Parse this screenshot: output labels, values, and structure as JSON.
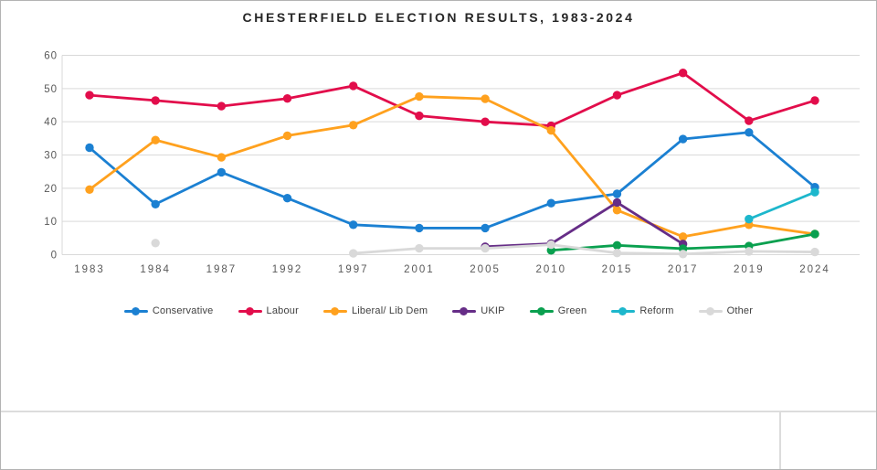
{
  "header": {
    "title": "CHESTERFIELD ELECTION RESULTS, 1983-2024"
  },
  "chart_data": {
    "type": "line",
    "title": "CHESTERFIELD ELECTION RESULTS, 1983-2024",
    "categories": [
      "1983",
      "1984",
      "1987",
      "1992",
      "1997",
      "2001",
      "2005",
      "2010",
      "2015",
      "2017",
      "2019",
      "2024"
    ],
    "series": [
      {
        "name": "Conservative",
        "color": "#1b80d2",
        "values": [
          32.2,
          15.2,
          24.8,
          17.0,
          9.0,
          8.0,
          8.0,
          15.5,
          18.3,
          34.8,
          36.8,
          20.3
        ]
      },
      {
        "name": "Labour",
        "color": "#e20d4b",
        "values": [
          48.0,
          46.4,
          44.7,
          47.0,
          50.8,
          41.8,
          40.0,
          38.8,
          48.0,
          54.7,
          40.3,
          46.4
        ]
      },
      {
        "name": "Liberal/ Lib Dem",
        "color": "#ffa11e",
        "values": [
          19.6,
          34.5,
          29.3,
          35.8,
          39.0,
          47.6,
          46.9,
          37.4,
          13.4,
          5.4,
          9.0,
          6.2
        ]
      },
      {
        "name": "UKIP",
        "color": "#662d87",
        "values": [
          null,
          null,
          null,
          null,
          null,
          null,
          2.4,
          3.3,
          15.7,
          3.2,
          null,
          null
        ]
      },
      {
        "name": "Green",
        "color": "#0aa04f",
        "values": [
          null,
          null,
          null,
          null,
          null,
          null,
          null,
          1.3,
          2.8,
          1.8,
          2.6,
          6.2
        ]
      },
      {
        "name": "Reform",
        "color": "#1db7cc",
        "values": [
          null,
          null,
          null,
          null,
          null,
          null,
          null,
          null,
          null,
          null,
          10.7,
          18.8
        ]
      },
      {
        "name": "Other",
        "color": "#d9d9d9",
        "values": [
          null,
          3.5,
          null,
          null,
          0.4,
          1.9,
          1.9,
          3.0,
          0.5,
          0.2,
          1.0,
          0.8
        ]
      }
    ],
    "ylim": [
      0,
      60
    ],
    "yticks": [
      0,
      10,
      20,
      30,
      40,
      50,
      60
    ],
    "xlabel": "",
    "ylabel": "",
    "grid": true,
    "legend_position": "bottom"
  },
  "colors": {
    "gridline": "#d9d9d9",
    "axis_label": "#595959",
    "title_text": "#262626",
    "panel_line": "#dcdcdc"
  }
}
